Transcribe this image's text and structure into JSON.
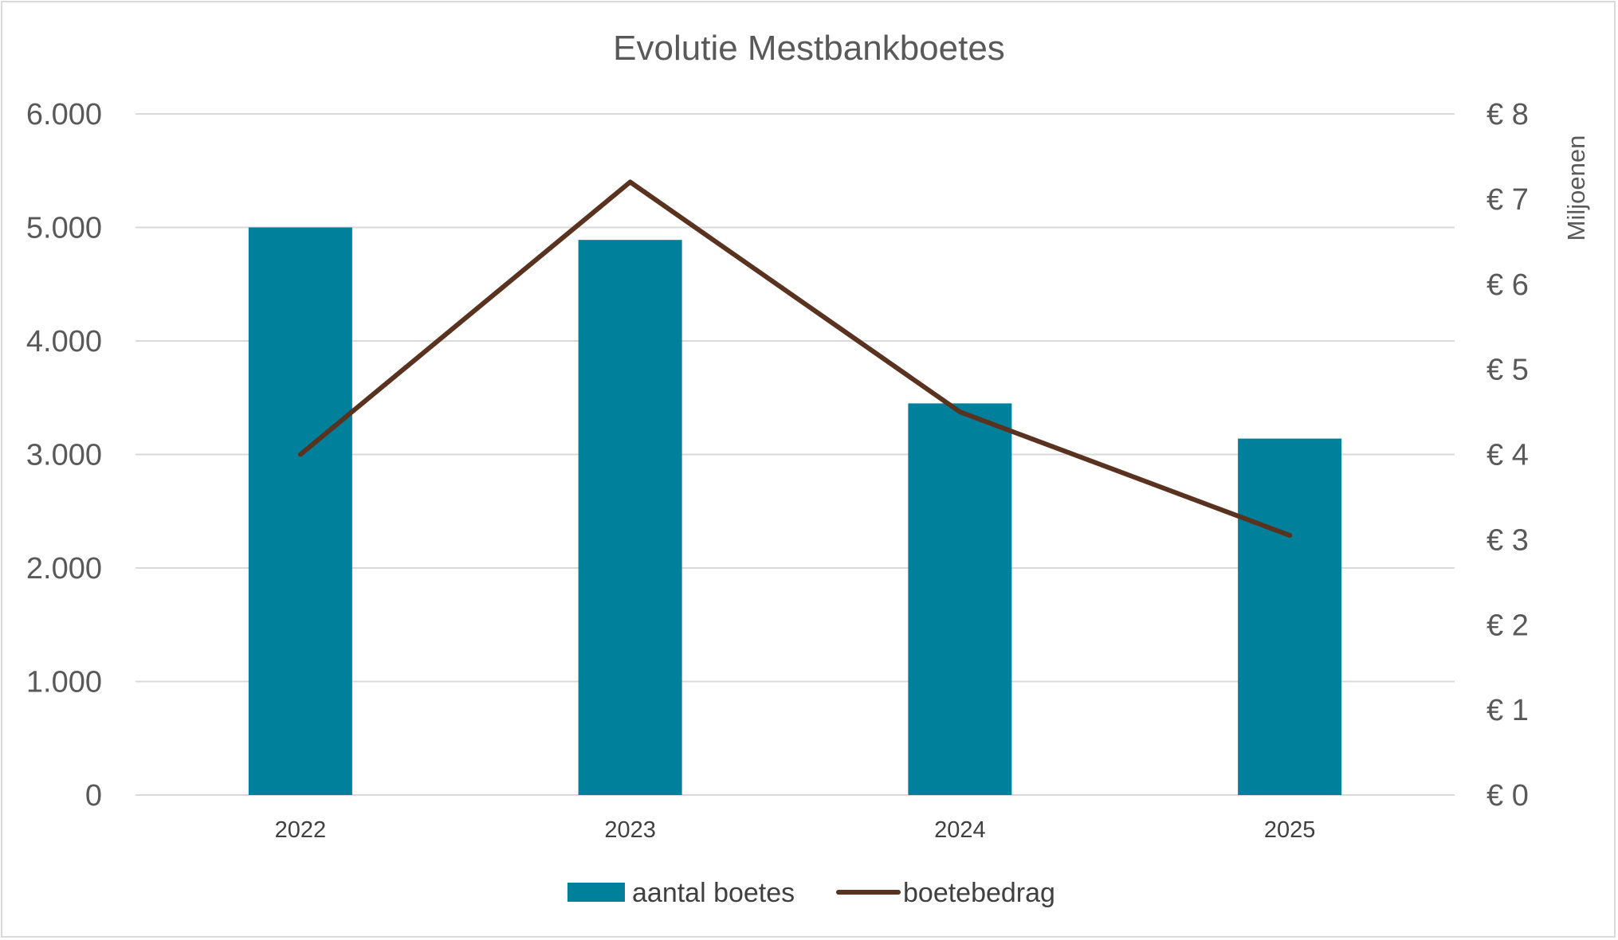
{
  "chart_data": {
    "type": "bar",
    "title": "Evolutie Mestbankboetes",
    "categories": [
      "2022",
      "2023",
      "2024",
      "2025"
    ],
    "y_axis": {
      "ylim": [
        0,
        6000
      ],
      "ticks": [
        0,
        1000,
        2000,
        3000,
        4000,
        5000,
        6000
      ],
      "tick_labels": [
        "0",
        "1.000",
        "2.000",
        "3.000",
        "4.000",
        "5.000",
        "6.000"
      ]
    },
    "y2_axis": {
      "label": "Miljoenen",
      "ylim": [
        0,
        8
      ],
      "ticks": [
        0,
        1,
        2,
        3,
        4,
        5,
        6,
        7,
        8
      ],
      "tick_labels": [
        "€ 0",
        "€ 1",
        "€ 2",
        "€ 3",
        "€ 4",
        "€ 5",
        "€ 6",
        "€ 7",
        "€ 8"
      ]
    },
    "series": [
      {
        "name": "aantal boetes",
        "type": "bar",
        "axis": "primary",
        "color": "#00809B",
        "values": [
          5000,
          4890,
          3450,
          3140
        ]
      },
      {
        "name": "boetebedrag",
        "type": "line",
        "axis": "secondary",
        "color": "#5A3220",
        "values": [
          4.0,
          7.2,
          4.5,
          3.05
        ]
      }
    ],
    "grid": true,
    "legend": "bottom"
  }
}
